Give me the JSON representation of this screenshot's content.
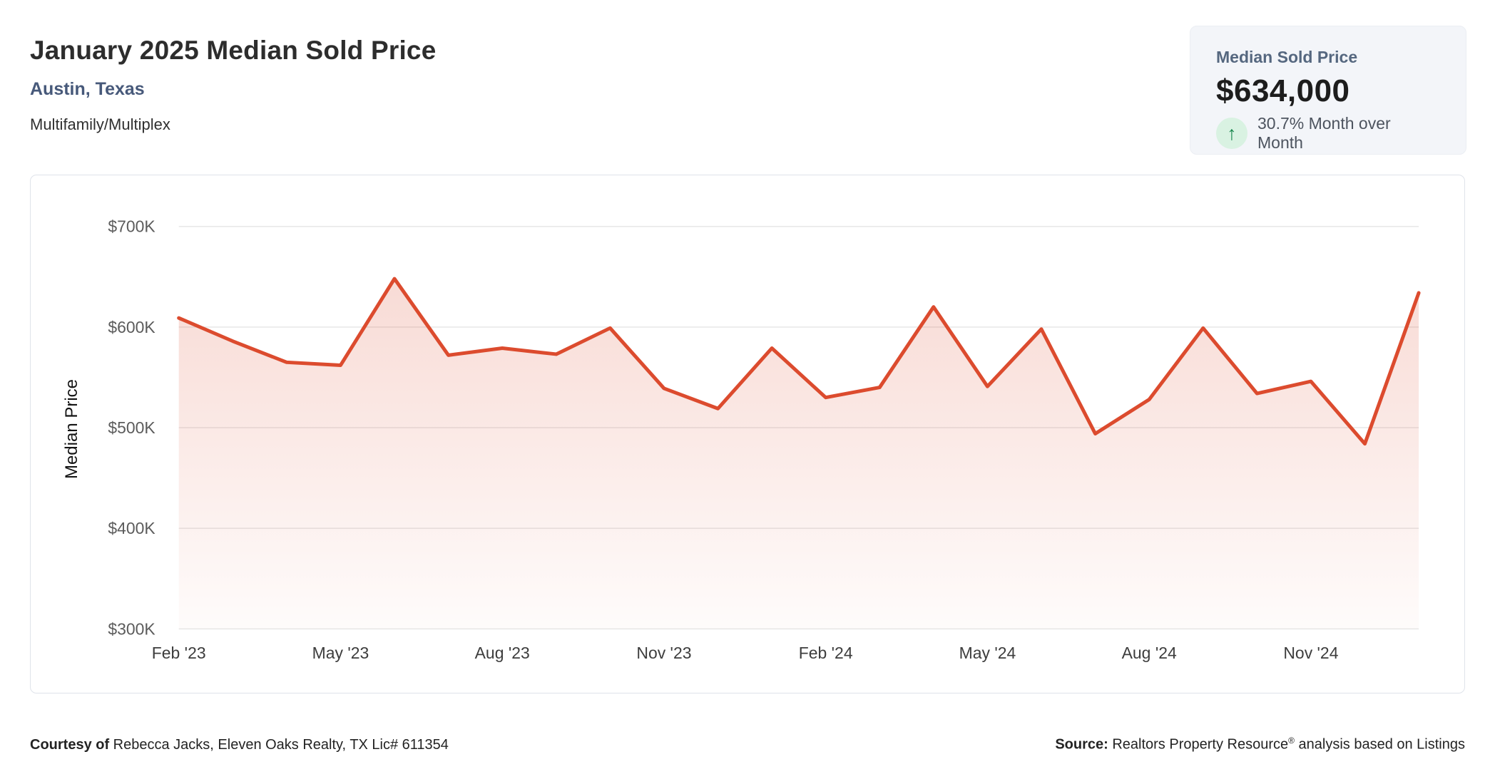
{
  "header": {
    "title": "January 2025 Median Sold Price",
    "location": "Austin, Texas",
    "property_type": "Multifamily/Multiplex"
  },
  "stat_card": {
    "label": "Median Sold Price",
    "value": "$634,000",
    "change_text": "30.7% Month over Month",
    "trend_direction": "up",
    "arrow_icon": "↑",
    "accent_green": "#19874e",
    "accent_green_bg": "#d9f2e2"
  },
  "chart_data": {
    "type": "area",
    "title": "",
    "xlabel": "",
    "ylabel": "Median Price",
    "months": [
      "Feb '23",
      "Mar '23",
      "Apr '23",
      "May '23",
      "Jun '23",
      "Jul '23",
      "Aug '23",
      "Sep '23",
      "Oct '23",
      "Nov '23",
      "Dec '23",
      "Jan '24",
      "Feb '24",
      "Mar '24",
      "Apr '24",
      "May '24",
      "Jun '24",
      "Jul '24",
      "Aug '24",
      "Sep '24",
      "Oct '24",
      "Nov '24",
      "Dec '24",
      "Jan '25"
    ],
    "values_usd_k": [
      609,
      586,
      565,
      562,
      648,
      572,
      579,
      573,
      599,
      539,
      519,
      579,
      530,
      540,
      620,
      541,
      598,
      494,
      528,
      599,
      534,
      546,
      484,
      634
    ],
    "ylim": [
      300,
      700
    ],
    "yticks": [
      300,
      400,
      500,
      600,
      700
    ],
    "ytick_labels": [
      "$300K",
      "$400K",
      "$500K",
      "$600K",
      "$700K"
    ],
    "xtick_indices": [
      0,
      3,
      6,
      9,
      12,
      15,
      18,
      21
    ],
    "xtick_labels": [
      "Feb '23",
      "May '23",
      "Aug '23",
      "Nov '23",
      "Feb '24",
      "May '24",
      "Aug '24",
      "Nov '24"
    ],
    "grid": "horizontal-only",
    "legend": "none",
    "line_color": "#dc4b2e",
    "area_fill_top": "rgba(220,75,46,0.20)",
    "area_fill_bottom": "rgba(220,75,46,0.02)",
    "grid_color": "#e7e7e7",
    "y_tick_label_color": "#5c5c5c",
    "x_tick_label_color": "#3d3d3d"
  },
  "footer": {
    "courtesy_label": "Courtesy of",
    "courtesy_text": " Rebecca Jacks, Eleven Oaks Realty, TX Lic# 611354",
    "source_label": "Source:",
    "source_text_1": " Realtors Property Resource",
    "source_registered_mark": "®",
    "source_text_2": " analysis based on Listings"
  }
}
